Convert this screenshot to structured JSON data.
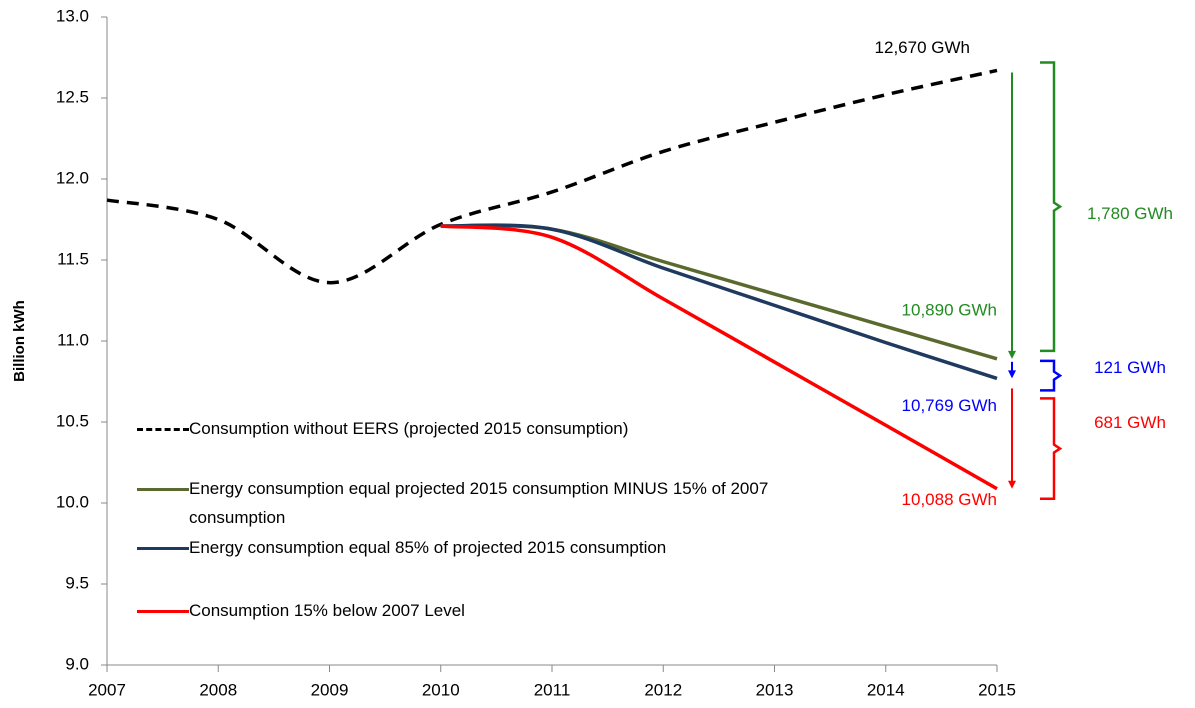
{
  "chart_data": {
    "type": "line",
    "ylabel": "Billion kWh",
    "x": [
      2007,
      2008,
      2009,
      2010,
      2011,
      2012,
      2013,
      2014,
      2015
    ],
    "series": [
      {
        "name": "Consumption without EERS (projected 2015 consumption)",
        "color": "#000000",
        "dashed": true,
        "values": [
          11.87,
          11.75,
          11.36,
          11.72,
          11.92,
          12.17,
          12.35,
          12.52,
          12.67
        ]
      },
      {
        "name": "Energy consumption equal projected 2015 consumption MINUS 15% of 2007 consumption",
        "color": "#5a6a2e",
        "dashed": false,
        "values": [
          null,
          null,
          null,
          11.71,
          11.69,
          11.49,
          11.29,
          11.09,
          10.89
        ]
      },
      {
        "name": "Energy consumption equal 85% of projected 2015 consumption",
        "color": "#1f3a5f",
        "dashed": false,
        "values": [
          null,
          null,
          null,
          11.71,
          11.69,
          11.45,
          11.22,
          10.99,
          10.769
        ]
      },
      {
        "name": "Consumption 15% below 2007 Level",
        "color": "#ff0000",
        "dashed": false,
        "values": [
          null,
          null,
          null,
          11.71,
          11.64,
          11.26,
          10.87,
          10.48,
          10.088
        ]
      }
    ],
    "xlim": [
      2007,
      2015
    ],
    "xticks": [
      2007,
      2008,
      2009,
      2010,
      2011,
      2012,
      2013,
      2014,
      2015
    ],
    "ylim": [
      9,
      13
    ],
    "yticks": [
      {
        "value": 9,
        "label": "9.0"
      },
      9.5,
      {
        "value": 10,
        "label": "10.0"
      },
      10.5,
      {
        "value": 11,
        "label": "11.0"
      },
      11.5,
      {
        "value": 12,
        "label": "12.0"
      },
      12.5,
      {
        "value": 13,
        "label": "13.0"
      }
    ],
    "grid": false,
    "annotations": [
      {
        "text": "12,670 GWh",
        "color": "#000000"
      },
      {
        "text": "10,890 GWh",
        "color": "#228b22"
      },
      {
        "text": "10,769 GWh",
        "color": "#0000ff"
      },
      {
        "text": "10,088 GWh",
        "color": "#ff0000"
      },
      {
        "text": "1,780 GWh",
        "color": "#228b22"
      },
      {
        "text": "121 GWh",
        "color": "#0000ff"
      },
      {
        "text": "681 GWh",
        "color": "#ff0000"
      }
    ]
  }
}
